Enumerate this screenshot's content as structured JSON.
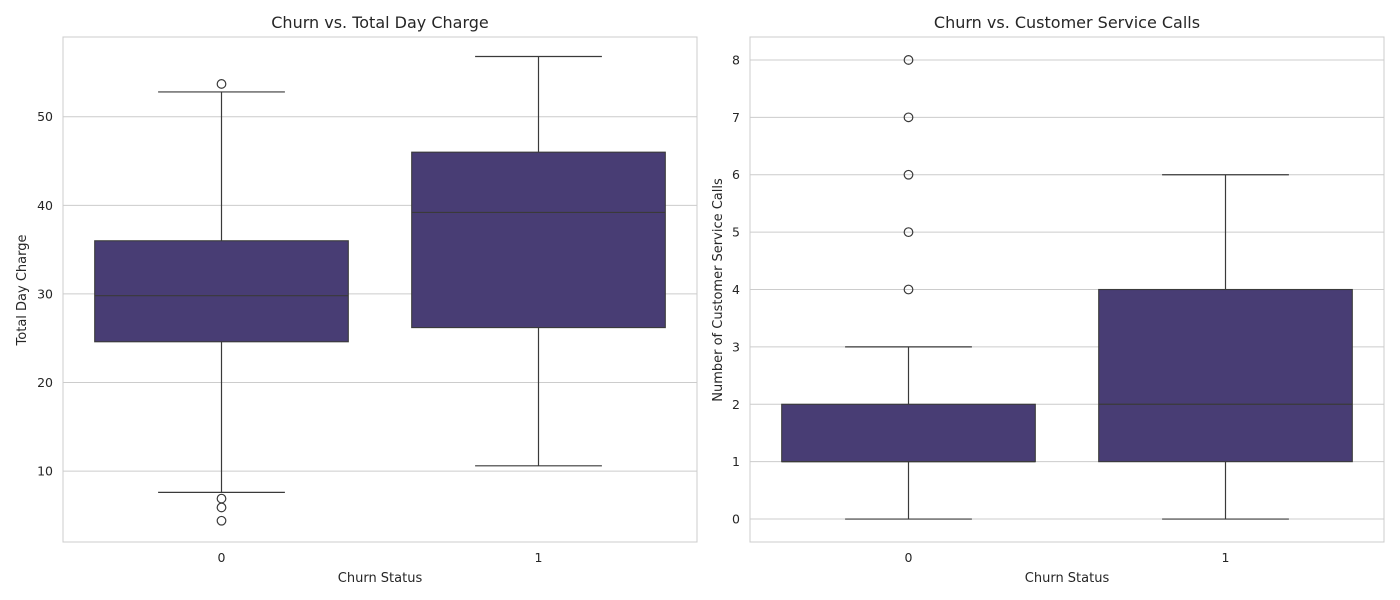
{
  "chart_data": [
    {
      "type": "box",
      "title": "Churn vs. Total Day Charge",
      "xlabel": "Churn Status",
      "ylabel": "Total Day Charge",
      "categories": [
        "0",
        "1"
      ],
      "ylim": [
        2.0,
        59.0
      ],
      "yticks": [
        10,
        20,
        30,
        40,
        50
      ],
      "grid": "horizontal",
      "box_color": "#483d74",
      "boxes": [
        {
          "category": "0",
          "whisker_low": 7.6,
          "q1": 24.6,
          "median": 29.8,
          "q3": 36.0,
          "whisker_high": 52.8,
          "outliers": [
            4.4,
            5.9,
            6.9,
            53.7
          ]
        },
        {
          "category": "1",
          "whisker_low": 10.6,
          "q1": 26.2,
          "median": 39.2,
          "q3": 46.0,
          "whisker_high": 56.8,
          "outliers": []
        }
      ]
    },
    {
      "type": "box",
      "title": "Churn vs. Customer Service Calls",
      "xlabel": "Churn Status",
      "ylabel": "Number of Customer Service Calls",
      "categories": [
        "0",
        "1"
      ],
      "ylim": [
        -0.4,
        8.4
      ],
      "yticks": [
        0,
        1,
        2,
        3,
        4,
        5,
        6,
        7,
        8
      ],
      "grid": "horizontal",
      "box_color": "#483d74",
      "boxes": [
        {
          "category": "0",
          "whisker_low": 0,
          "q1": 1,
          "median": 1,
          "q3": 2,
          "whisker_high": 3,
          "outliers": [
            4,
            5,
            6,
            7,
            8
          ]
        },
        {
          "category": "1",
          "whisker_low": 0,
          "q1": 1,
          "median": 2,
          "q3": 4,
          "whisker_high": 6,
          "outliers": []
        }
      ]
    }
  ]
}
